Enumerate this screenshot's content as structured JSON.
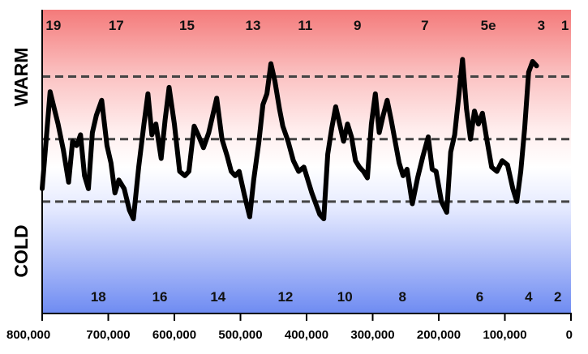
{
  "chart_data": {
    "type": "line",
    "xlabel": "",
    "ylabel_top": "WARM",
    "ylabel_bottom": "COLD",
    "xlim": [
      800000,
      0
    ],
    "ylim": [
      0,
      1
    ],
    "grid": false,
    "reference_lines": [
      0.26,
      0.55,
      0.84
    ],
    "x_ticks": [
      800000,
      700000,
      600000,
      500000,
      400000,
      300000,
      200000,
      100000,
      0
    ],
    "x_tick_labels": [
      "800,000",
      "700,000",
      "600,000",
      "500,000",
      "400,000",
      "300,000",
      "200,000",
      "100,000",
      "0"
    ],
    "stages_top": [
      {
        "label": "19",
        "x": 783000
      },
      {
        "label": "17",
        "x": 688000
      },
      {
        "label": "15",
        "x": 581000
      },
      {
        "label": "13",
        "x": 481000
      },
      {
        "label": "11",
        "x": 402000
      },
      {
        "label": "9",
        "x": 323000
      },
      {
        "label": "7",
        "x": 221000
      },
      {
        "label": "5e",
        "x": 125000
      },
      {
        "label": "3",
        "x": 45000
      },
      {
        "label": "1",
        "x": 9000
      }
    ],
    "stages_bottom": [
      {
        "label": "18",
        "x": 715000
      },
      {
        "label": "16",
        "x": 622000
      },
      {
        "label": "14",
        "x": 534000
      },
      {
        "label": "12",
        "x": 432000
      },
      {
        "label": "10",
        "x": 342000
      },
      {
        "label": "8",
        "x": 255000
      },
      {
        "label": "6",
        "x": 138000
      },
      {
        "label": "4",
        "x": 64000
      },
      {
        "label": "2",
        "x": 20000
      }
    ],
    "series": [
      {
        "color": "#000000",
        "points": [
          [
            800000,
            0.32
          ],
          [
            788000,
            0.77
          ],
          [
            776000,
            0.62
          ],
          [
            768000,
            0.5
          ],
          [
            760000,
            0.35
          ],
          [
            754000,
            0.54
          ],
          [
            748000,
            0.52
          ],
          [
            742000,
            0.57
          ],
          [
            736000,
            0.38
          ],
          [
            730000,
            0.32
          ],
          [
            724000,
            0.58
          ],
          [
            718000,
            0.66
          ],
          [
            710000,
            0.73
          ],
          [
            702000,
            0.52
          ],
          [
            696000,
            0.44
          ],
          [
            690000,
            0.3
          ],
          [
            684000,
            0.36
          ],
          [
            676000,
            0.32
          ],
          [
            668000,
            0.22
          ],
          [
            662000,
            0.18
          ],
          [
            654000,
            0.42
          ],
          [
            646000,
            0.62
          ],
          [
            640000,
            0.76
          ],
          [
            634000,
            0.57
          ],
          [
            628000,
            0.62
          ],
          [
            620000,
            0.46
          ],
          [
            614000,
            0.64
          ],
          [
            608000,
            0.79
          ],
          [
            600000,
            0.62
          ],
          [
            592000,
            0.4
          ],
          [
            584000,
            0.38
          ],
          [
            578000,
            0.4
          ],
          [
            570000,
            0.61
          ],
          [
            564000,
            0.57
          ],
          [
            556000,
            0.51
          ],
          [
            548000,
            0.58
          ],
          [
            542000,
            0.66
          ],
          [
            536000,
            0.74
          ],
          [
            528000,
            0.55
          ],
          [
            520000,
            0.47
          ],
          [
            514000,
            0.4
          ],
          [
            508000,
            0.38
          ],
          [
            502000,
            0.4
          ],
          [
            494000,
            0.29
          ],
          [
            486000,
            0.19
          ],
          [
            480000,
            0.36
          ],
          [
            472000,
            0.54
          ],
          [
            466000,
            0.71
          ],
          [
            460000,
            0.76
          ],
          [
            454000,
            0.9
          ],
          [
            448000,
            0.82
          ],
          [
            441000,
            0.69
          ],
          [
            436000,
            0.61
          ],
          [
            428000,
            0.54
          ],
          [
            420000,
            0.45
          ],
          [
            412000,
            0.4
          ],
          [
            404000,
            0.42
          ],
          [
            398000,
            0.36
          ],
          [
            392000,
            0.3
          ],
          [
            386000,
            0.25
          ],
          [
            380000,
            0.2
          ],
          [
            374000,
            0.18
          ],
          [
            368000,
            0.48
          ],
          [
            362000,
            0.6
          ],
          [
            356000,
            0.7
          ],
          [
            350000,
            0.62
          ],
          [
            344000,
            0.54
          ],
          [
            338000,
            0.62
          ],
          [
            332000,
            0.56
          ],
          [
            326000,
            0.45
          ],
          [
            320000,
            0.42
          ],
          [
            314000,
            0.4
          ],
          [
            308000,
            0.37
          ],
          [
            302000,
            0.62
          ],
          [
            296000,
            0.76
          ],
          [
            290000,
            0.58
          ],
          [
            284000,
            0.66
          ],
          [
            278000,
            0.73
          ],
          [
            272000,
            0.64
          ],
          [
            266000,
            0.54
          ],
          [
            260000,
            0.44
          ],
          [
            254000,
            0.38
          ],
          [
            248000,
            0.41
          ],
          [
            240000,
            0.25
          ],
          [
            232000,
            0.37
          ],
          [
            224000,
            0.47
          ],
          [
            216000,
            0.56
          ],
          [
            210000,
            0.41
          ],
          [
            204000,
            0.4
          ],
          [
            196000,
            0.26
          ],
          [
            188000,
            0.21
          ],
          [
            182000,
            0.49
          ],
          [
            176000,
            0.57
          ],
          [
            170000,
            0.74
          ],
          [
            164000,
            0.92
          ],
          [
            158000,
            0.69
          ],
          [
            152000,
            0.55
          ],
          [
            146000,
            0.68
          ],
          [
            140000,
            0.62
          ],
          [
            134000,
            0.67
          ],
          [
            128000,
            0.56
          ],
          [
            120000,
            0.42
          ],
          [
            112000,
            0.4
          ],
          [
            104000,
            0.45
          ],
          [
            96000,
            0.43
          ],
          [
            88000,
            0.32
          ],
          [
            82000,
            0.26
          ],
          [
            76000,
            0.4
          ],
          [
            70000,
            0.6
          ],
          [
            64000,
            0.86
          ],
          [
            58000,
            0.91
          ],
          [
            52000,
            0.89
          ]
        ]
      }
    ]
  }
}
